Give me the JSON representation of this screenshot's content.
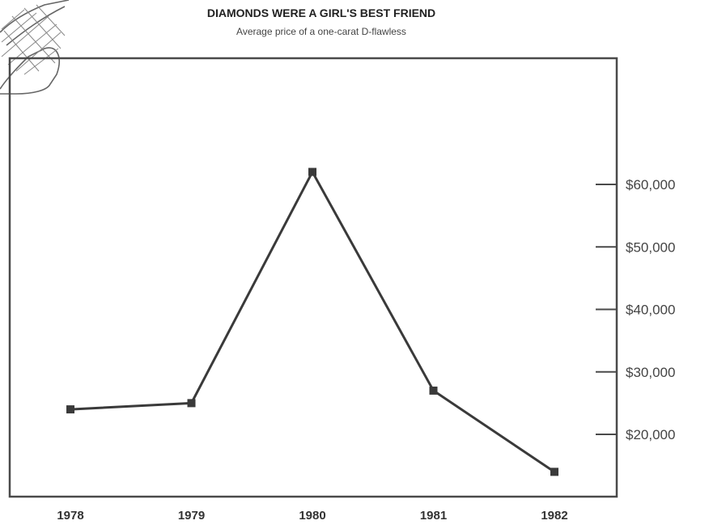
{
  "chart_data": {
    "type": "line",
    "title": "DIAMONDS WERE A GIRL'S BEST FRIEND",
    "subtitle": "Average price of a one-carat D-flawless",
    "categories": [
      "1978",
      "1979",
      "1980",
      "1981",
      "1982"
    ],
    "series": [
      {
        "values": [
          24000,
          25000,
          62000,
          27000,
          14000
        ]
      }
    ],
    "y_ticks": [
      "$20,000",
      "$30,000",
      "$40,000",
      "$50,000",
      "$60,000"
    ],
    "y_tick_values": [
      20000,
      30000,
      40000,
      50000,
      60000
    ],
    "ylim": [
      12000,
      80000
    ],
    "y_axis_side": "right",
    "grid": false,
    "line_color": "#3a3a3a",
    "frame_color": "#4a4a4a"
  }
}
